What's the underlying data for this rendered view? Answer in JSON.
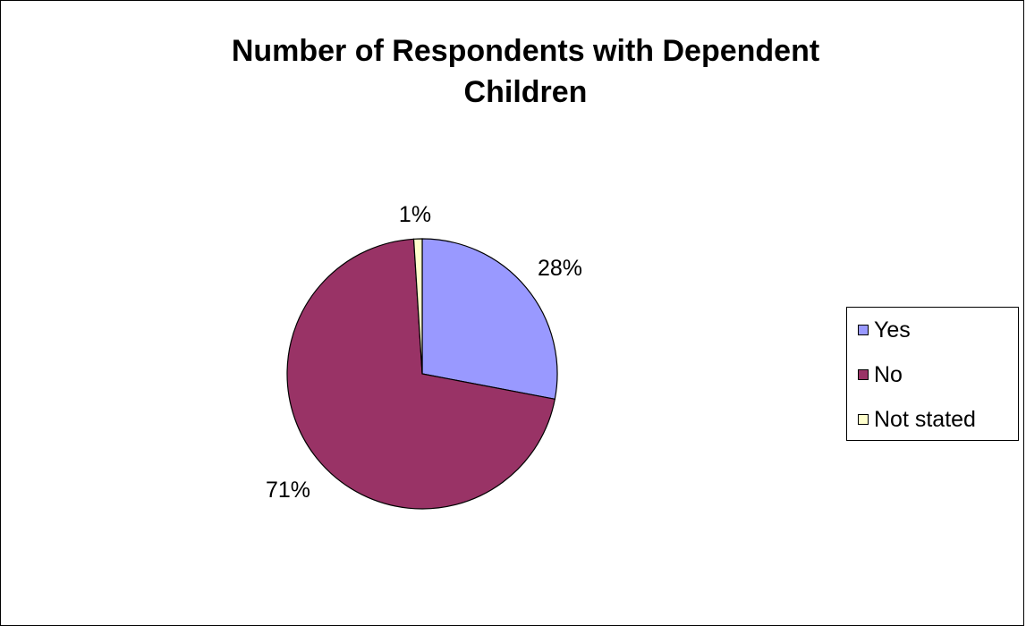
{
  "chart_data": {
    "type": "pie",
    "title": "Number of Respondents with Dependent Children",
    "title_lines": [
      "Number of Respondents with Dependent",
      "Children"
    ],
    "categories": [
      "Yes",
      "No",
      "Not stated"
    ],
    "values": [
      28,
      71,
      1
    ],
    "data_labels": [
      "28%",
      "71%",
      "1%"
    ],
    "colors": [
      "#9999FF",
      "#993366",
      "#FFFFCC"
    ],
    "legend": {
      "position": "right",
      "entries": [
        "Yes",
        "No",
        "Not stated"
      ]
    },
    "start_angle_deg": 0,
    "direction": "clockwise"
  }
}
